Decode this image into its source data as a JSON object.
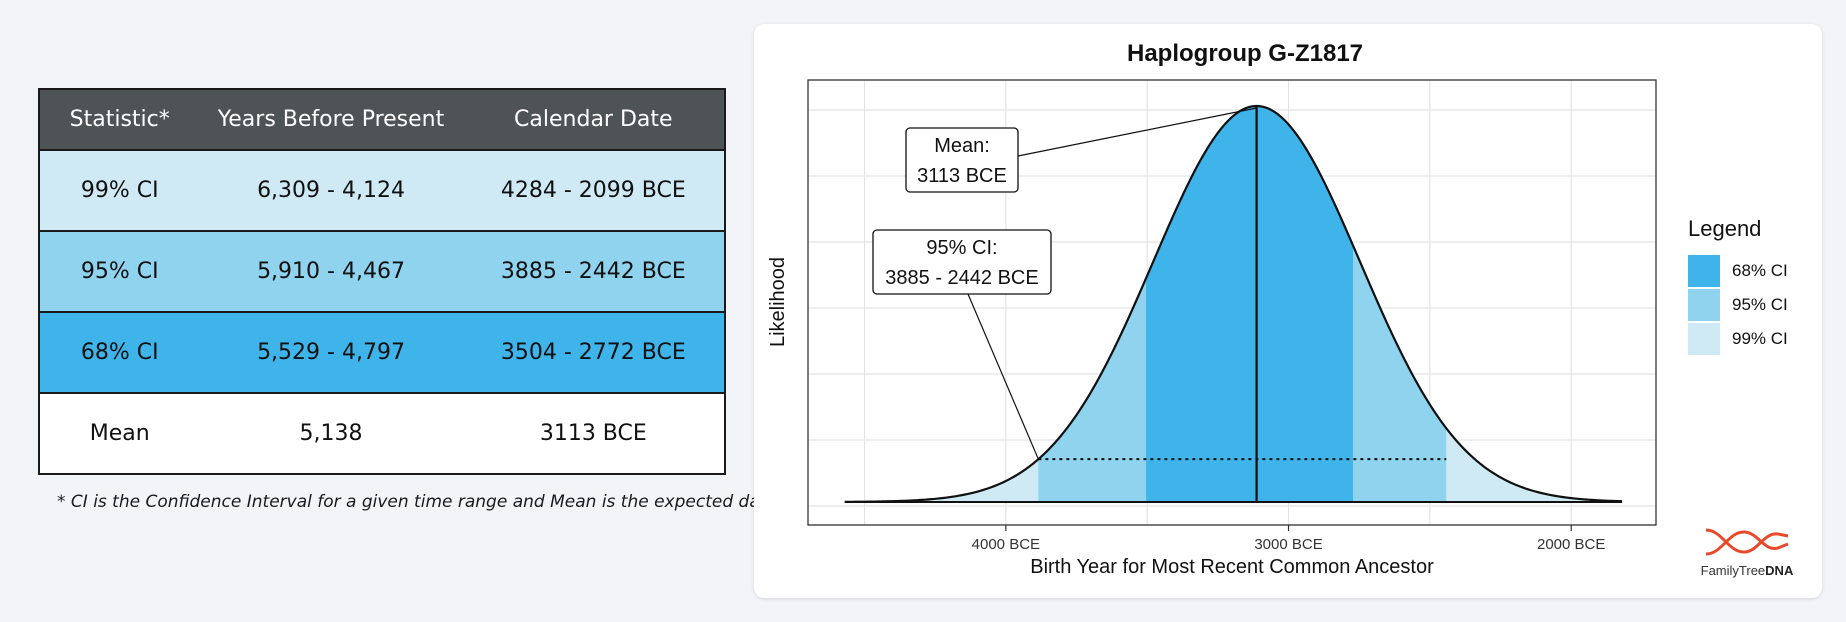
{
  "table": {
    "headers": [
      "Statistic*",
      "Years Before Present",
      "Calendar Date"
    ],
    "rows": [
      {
        "statistic": "99% CI",
        "ybp": "6,309 - 4,124",
        "date": "4284 - 2099 BCE"
      },
      {
        "statistic": "95% CI",
        "ybp": "5,910 - 4,467",
        "date": "3885 - 2442 BCE"
      },
      {
        "statistic": "68% CI",
        "ybp": "5,529 - 4,797",
        "date": "3504 - 2772 BCE"
      },
      {
        "statistic": "Mean",
        "ybp": "5,138",
        "date": "3113 BCE"
      }
    ],
    "footnote": "* CI is the Confidence Interval for a given time range and Mean is the expected date."
  },
  "colors": {
    "ci68": "#3fb4ea",
    "ci95": "#8fd3ee",
    "ci99": "#cfeaf5",
    "header": "#4e5456",
    "brand_accent": "#e8492b"
  },
  "chart_data": {
    "type": "area",
    "title": "Haplogroup G-Z1817",
    "xlabel": "Birth Year for Most Recent Common Ancestor",
    "ylabel": "Likelihood",
    "x_unit": "year (negative = BCE)",
    "x_range": [
      -4700,
      -1700
    ],
    "x_ticks": [
      {
        "value": -4000,
        "label": "4000 BCE"
      },
      {
        "value": -3000,
        "label": "3000 BCE"
      },
      {
        "value": -2000,
        "label": "2000 BCE"
      }
    ],
    "grid": true,
    "mean": -3113,
    "intervals": [
      {
        "name": "99% CI",
        "from": -4284,
        "to": -2099
      },
      {
        "name": "95% CI",
        "from": -3885,
        "to": -2442
      },
      {
        "name": "68% CI",
        "from": -3504,
        "to": -2772
      }
    ],
    "curve_x_extent": [
      -4570,
      -1820
    ],
    "annotations": [
      {
        "label_line1": "Mean:",
        "label_line2": "3113 BCE",
        "points_to": "mean"
      },
      {
        "label_line1": "95% CI:",
        "label_line2": "3885 - 2442 BCE",
        "points_to": "95% CI"
      }
    ],
    "legend": {
      "title": "Legend",
      "placement": "right",
      "items": [
        "68% CI",
        "95% CI",
        "99% CI"
      ]
    }
  },
  "brand": {
    "name_part1": "FamilyTree",
    "name_part2": "DNA"
  }
}
